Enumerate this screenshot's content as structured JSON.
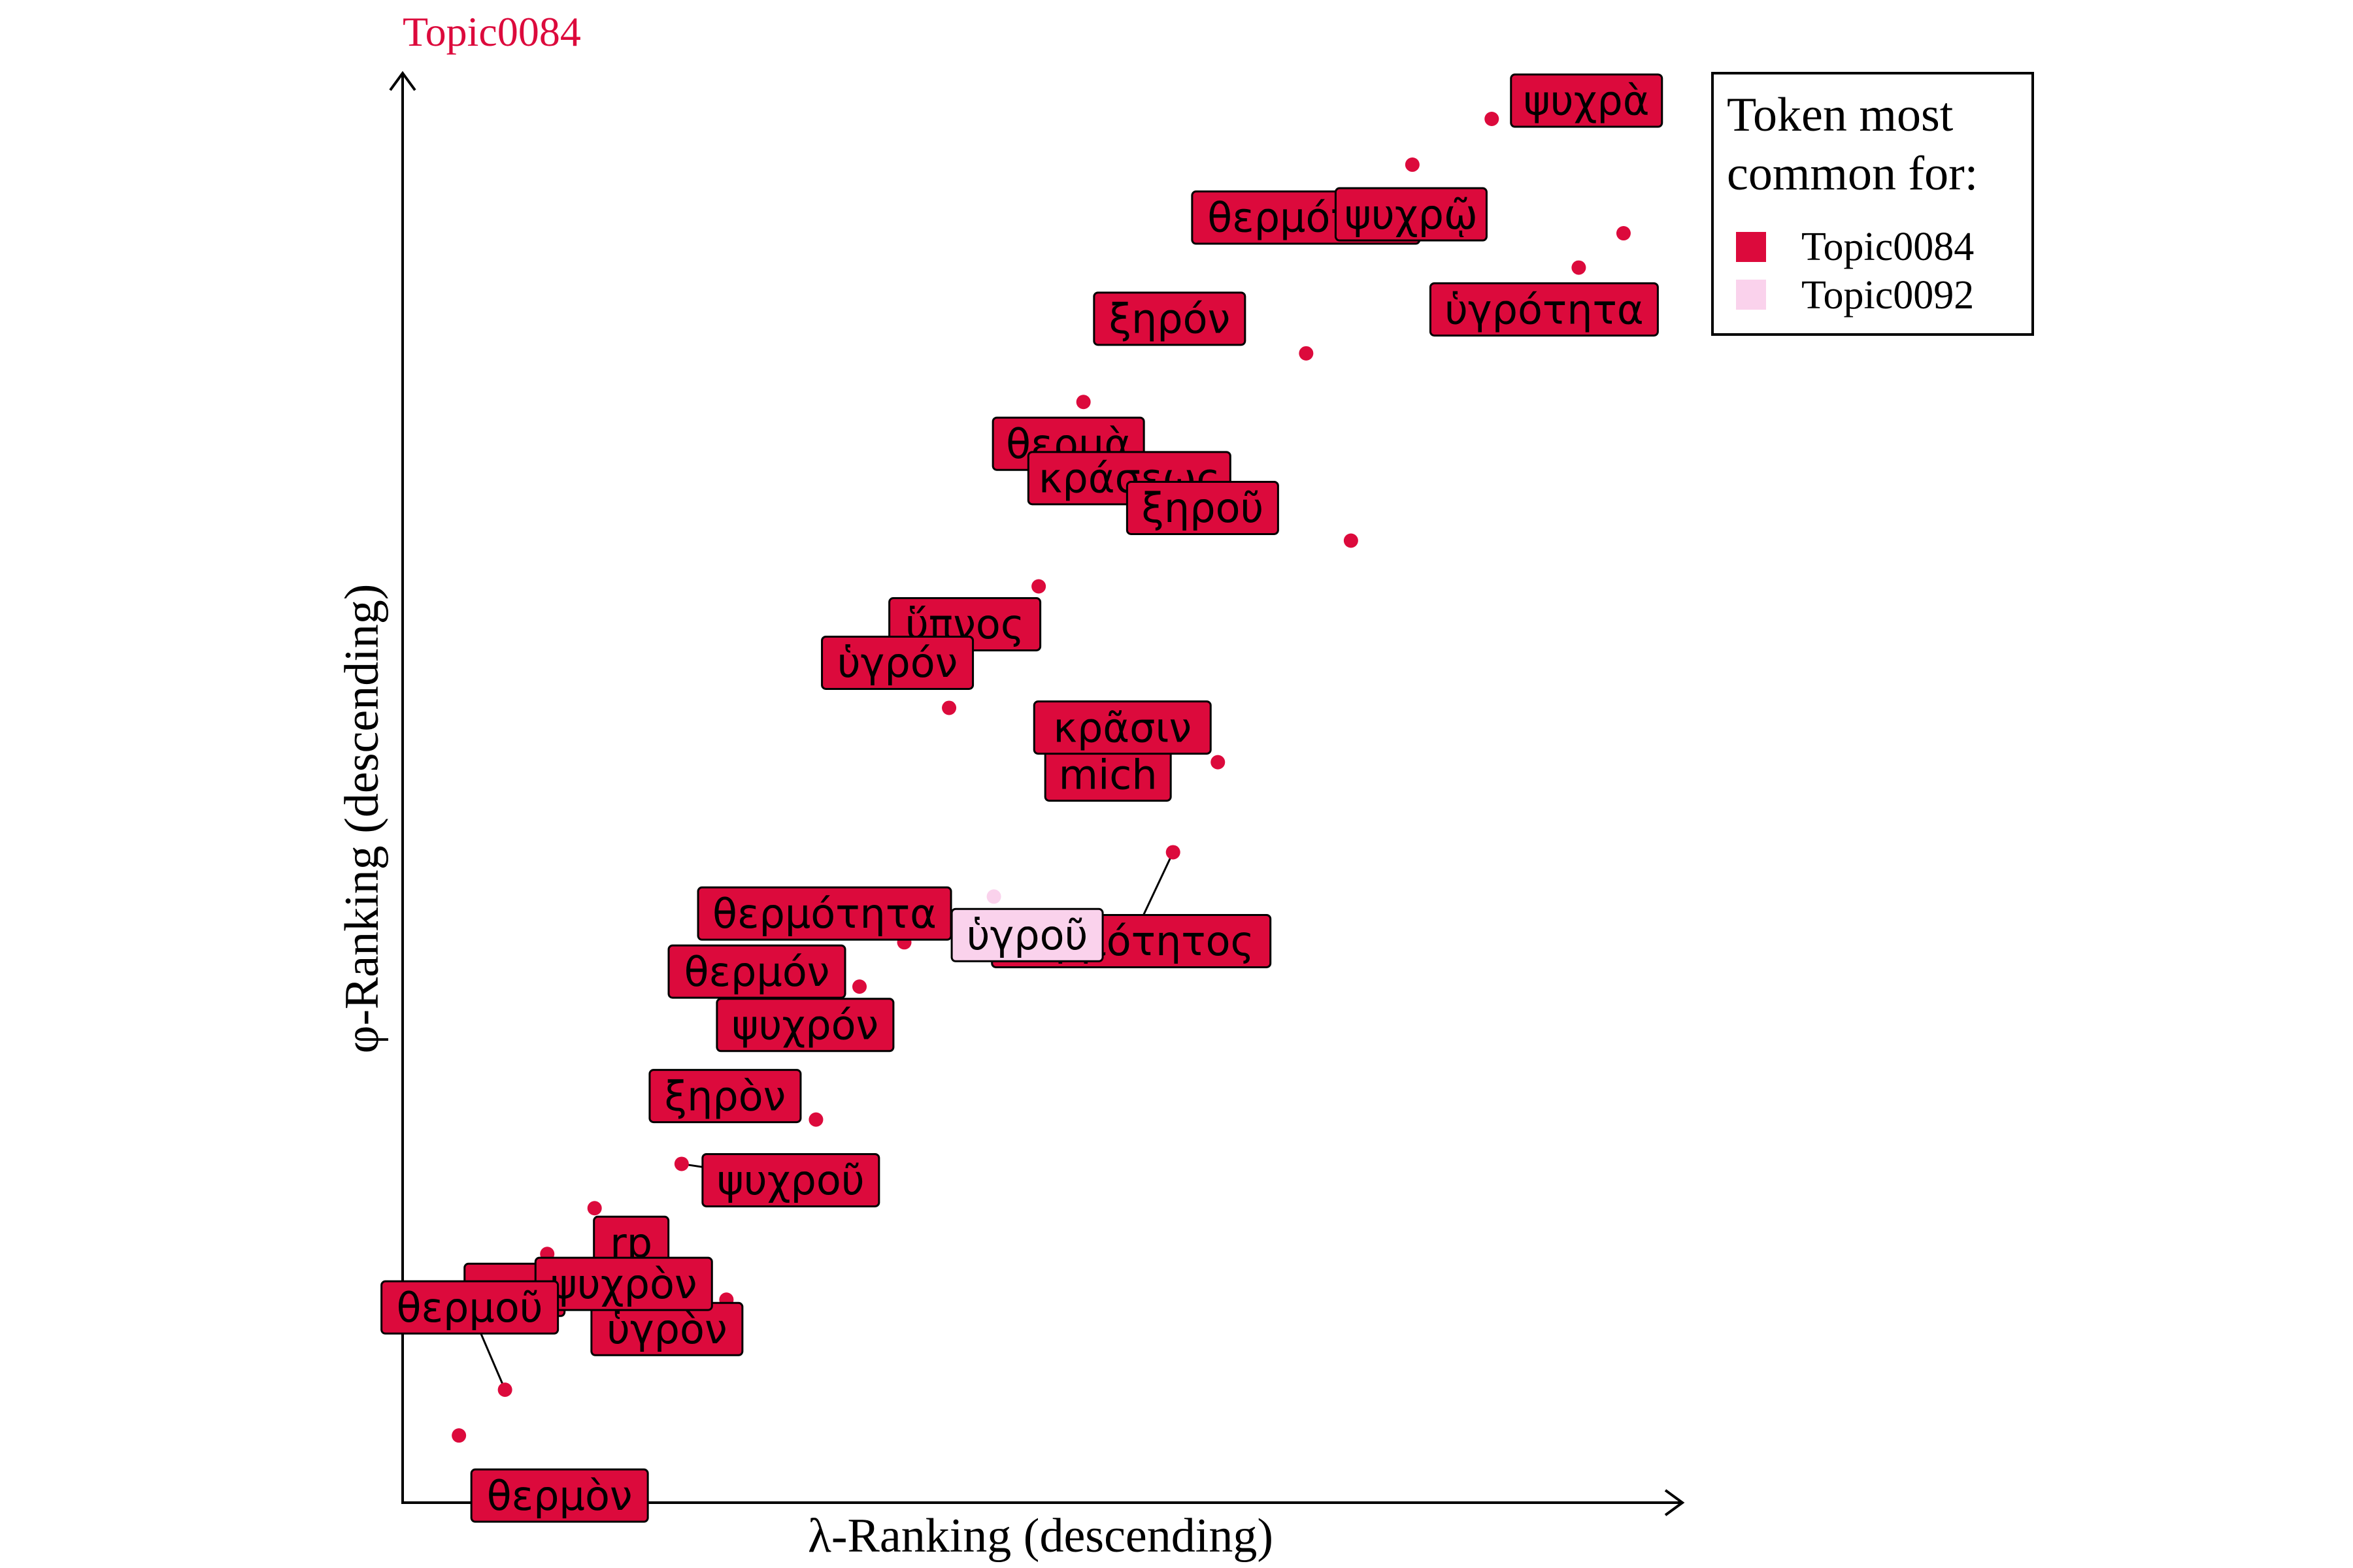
{
  "chart_data": {
    "type": "scatter",
    "title": "Topic0084",
    "title_color": "#dc0a3c",
    "xlabel": "λ-Ranking (descending)",
    "ylabel": "φ-Ranking (descending)",
    "xlim": [
      0,
      100
    ],
    "ylim": [
      0,
      100
    ],
    "grid": false,
    "legend": {
      "title": "Token most common for:",
      "title_lines": [
        "Token most",
        "common for:"
      ],
      "placement": "top-right",
      "entries": [
        {
          "name": "Topic0084",
          "color": "#dc0a3c"
        },
        {
          "name": "Topic0092",
          "color": "#fad2ec"
        }
      ]
    },
    "points": [
      {
        "token": "ψυχρὰ",
        "x": 85.1,
        "y": 96.8,
        "topic": "Topic0084"
      },
      {
        "token": "θερμότης",
        "x": 78.9,
        "y": 93.6,
        "topic": "Topic0084"
      },
      {
        "token": "ψυχρῷ",
        "x": 95.4,
        "y": 88.8,
        "topic": "Topic0084"
      },
      {
        "token": "ὑγρότητα",
        "x": 91.9,
        "y": 86.4,
        "topic": "Topic0084"
      },
      {
        "token": "ξηρόν",
        "x": 70.6,
        "y": 80.4,
        "topic": "Topic0084"
      },
      {
        "token": "θερμὰ",
        "x": 53.2,
        "y": 77.0,
        "topic": "Topic0084"
      },
      {
        "token": "κράσεως",
        "x": 67.1,
        "y": 70.3,
        "topic": "Topic0084"
      },
      {
        "token": "ξηροῦ",
        "x": 74.1,
        "y": 67.3,
        "topic": "Topic0084"
      },
      {
        "token": "ὕπνος",
        "x": 49.7,
        "y": 64.1,
        "topic": "Topic0084"
      },
      {
        "token": "ὑγρόν",
        "x": 42.7,
        "y": 55.6,
        "topic": "Topic0084"
      },
      {
        "token": "mich",
        "x": 56.7,
        "y": 55.0,
        "topic": "Topic0084"
      },
      {
        "token": "κρᾶσιν",
        "x": 63.7,
        "y": 51.8,
        "topic": "Topic0084"
      },
      {
        "token": "θερμότητος",
        "x": 60.2,
        "y": 45.5,
        "topic": "Topic0084"
      },
      {
        "token": "ὑγροῦ",
        "x": 46.2,
        "y": 42.4,
        "topic": "Topic0092"
      },
      {
        "token": "θερμότητα",
        "x": 39.2,
        "y": 39.2,
        "topic": "Topic0084"
      },
      {
        "token": "θερμόν",
        "x": 35.7,
        "y": 36.1,
        "topic": "Topic0084"
      },
      {
        "token": "ψυχρόν",
        "x": 28.8,
        "y": 33.1,
        "topic": "Topic0084"
      },
      {
        "token": "ξηρὸν",
        "x": 32.3,
        "y": 26.8,
        "topic": "Topic0084"
      },
      {
        "token": "ψυχροῦ",
        "x": 21.8,
        "y": 23.7,
        "topic": "Topic0084"
      },
      {
        "token": "rp",
        "x": 15.0,
        "y": 20.6,
        "topic": "Topic0084"
      },
      {
        "token": "crp",
        "x": 11.3,
        "y": 17.4,
        "topic": "Topic0084"
      },
      {
        "token": "ὑγρὸν",
        "x": 25.3,
        "y": 14.2,
        "topic": "Topic0084"
      },
      {
        "token": "ψυχρὸν",
        "x": 18.4,
        "y": 11.1,
        "topic": "Topic0084"
      },
      {
        "token": "θερμοῦ",
        "x": 8.0,
        "y": 7.9,
        "topic": "Topic0084"
      },
      {
        "token": "θερμὸν",
        "x": 4.4,
        "y": 4.7,
        "topic": "Topic0084"
      }
    ]
  }
}
